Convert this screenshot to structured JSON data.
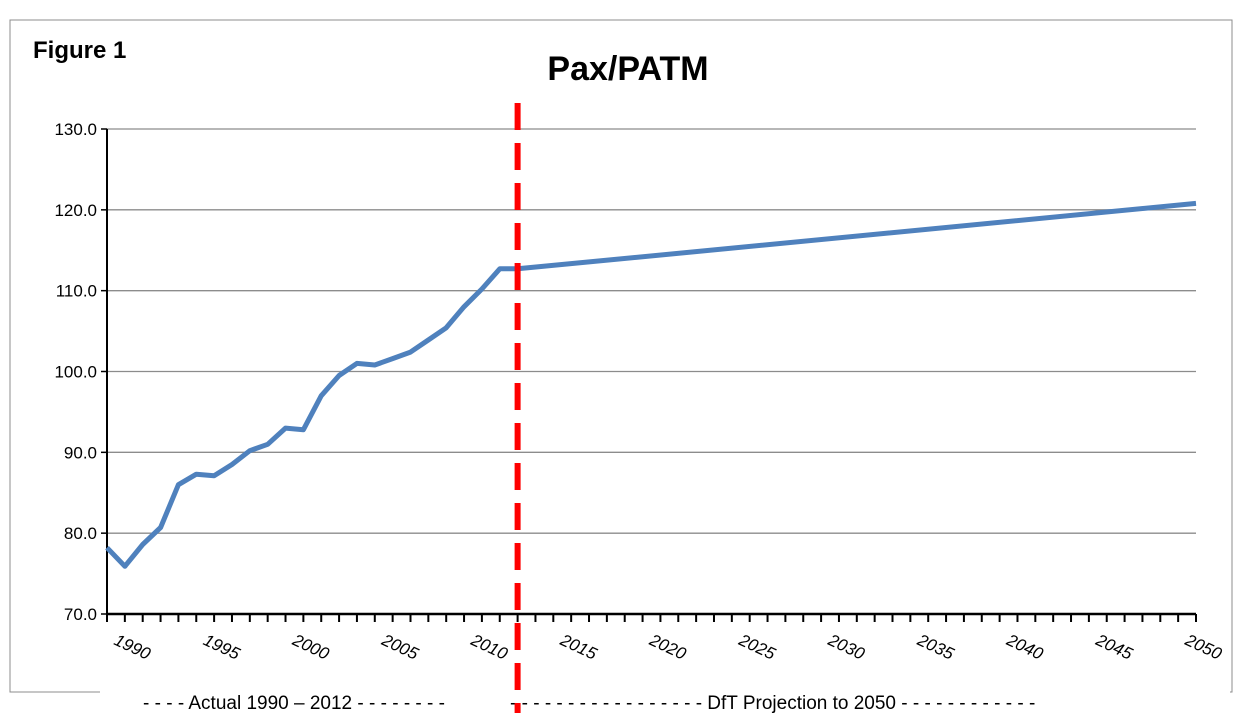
{
  "figure_label": "Figure 1",
  "colors": {
    "series": "#4f81bd",
    "divider": "#ff0000",
    "grid": "#8c8c8c",
    "axis": "#000000"
  },
  "chart_data": {
    "type": "line",
    "title": "Pax/PATM",
    "xlabel": "",
    "ylabel": "",
    "ylim": [
      70,
      130
    ],
    "xlim": [
      1989,
      2050
    ],
    "y_ticks": [
      "70.0",
      "80.0",
      "90.0",
      "100.0",
      "110.0",
      "120.0",
      "130.0"
    ],
    "x_ticks": [
      "1990",
      "1995",
      "2000",
      "2005",
      "2010",
      "2015",
      "2020",
      "2025",
      "2030",
      "2035",
      "2040",
      "2045",
      "2050"
    ],
    "grid": "horizontal",
    "divider_year": 2012,
    "series": [
      {
        "x": [
          1989,
          1990,
          1991,
          1992,
          1993,
          1994,
          1995,
          1996,
          1997,
          1998,
          1999,
          2000,
          2001,
          2002,
          2003,
          2004,
          2005,
          2006,
          2007,
          2008,
          2009,
          2010,
          2011,
          2012,
          2050
        ],
        "values": [
          78.2,
          75.9,
          78.6,
          80.7,
          86.0,
          87.3,
          87.1,
          88.5,
          90.2,
          91.0,
          93.0,
          92.8,
          97.0,
          99.5,
          101.0,
          100.8,
          101.6,
          102.4,
          103.9,
          105.4,
          108.0,
          110.2,
          112.7,
          112.7,
          120.8
        ]
      }
    ],
    "annotations": {
      "left": "- - - - Actual 1990 – 2012 - - - - - - - -",
      "right": "- - - - - - - - - - - - - - - - - DfT Projection to 2050 - - - - - - - - - - - -"
    }
  }
}
